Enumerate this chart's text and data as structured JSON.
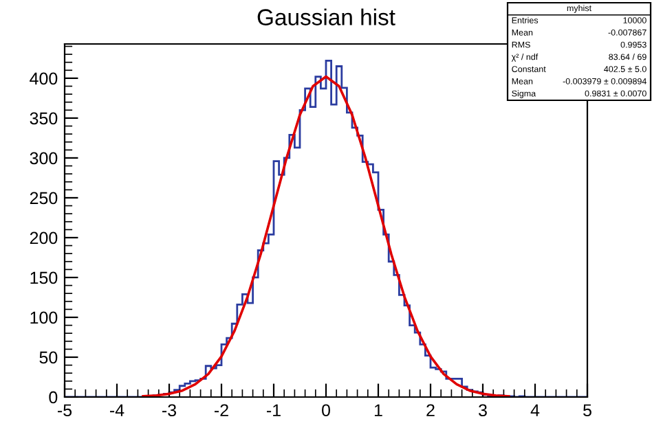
{
  "chart_data": {
    "type": "histogram",
    "title": "Gaussian hist",
    "bins": [
      -5.0,
      -4.9,
      -4.8,
      -4.7,
      -4.6,
      -4.5,
      -4.4,
      -4.3,
      -4.2,
      -4.1,
      -4.0,
      -3.9,
      -3.8,
      -3.7,
      -3.6,
      -3.5,
      -3.4,
      -3.3,
      -3.2,
      -3.1,
      -3.0,
      -2.9,
      -2.8,
      -2.7,
      -2.6,
      -2.5,
      -2.4,
      -2.3,
      -2.2,
      -2.1,
      -2.0,
      -1.9,
      -1.8,
      -1.7,
      -1.6,
      -1.5,
      -1.4,
      -1.3,
      -1.2,
      -1.1,
      -1.0,
      -0.9,
      -0.8,
      -0.7,
      -0.6,
      -0.5,
      -0.4,
      -0.3,
      -0.2,
      -0.1,
      0.0,
      0.1,
      0.2,
      0.3,
      0.4,
      0.5,
      0.6,
      0.7,
      0.8,
      0.9,
      1.0,
      1.1,
      1.2,
      1.3,
      1.4,
      1.5,
      1.6,
      1.7,
      1.8,
      1.9,
      2.0,
      2.1,
      2.2,
      2.3,
      2.4,
      2.5,
      2.6,
      2.7,
      2.8,
      2.9,
      3.0,
      3.1,
      3.2,
      3.3,
      3.4,
      3.5,
      3.6,
      3.7,
      3.8,
      3.9,
      4.0,
      4.1,
      4.2,
      4.3,
      4.4,
      4.5,
      4.6,
      4.7,
      4.8,
      4.9,
      5.0
    ],
    "series": [
      {
        "color": "#2b3ca0",
        "values": [
          0,
          0,
          0,
          0,
          0,
          0,
          0,
          0,
          0,
          0,
          0,
          0,
          0,
          0,
          0,
          1,
          1,
          2,
          3,
          4,
          6,
          9,
          14,
          17,
          20,
          21,
          23,
          39,
          36,
          40,
          66,
          74,
          92,
          116,
          129,
          118,
          150,
          184,
          193,
          204,
          296,
          279,
          300,
          329,
          313,
          360,
          387,
          364,
          402,
          387,
          422,
          367,
          415,
          388,
          357,
          338,
          328,
          295,
          292,
          282,
          235,
          204,
          170,
          153,
          128,
          115,
          90,
          81,
          66,
          52,
          37,
          35,
          32,
          23,
          23,
          23,
          13,
          9,
          7,
          6,
          3,
          2,
          1,
          2,
          1,
          1,
          0,
          1,
          0,
          0,
          0,
          0,
          0,
          0,
          0,
          0,
          0,
          0,
          0,
          0
        ]
      },
      {
        "type": "line",
        "color": "#e00000",
        "x": [
          -3.5,
          -3.25,
          -3.0,
          -2.75,
          -2.5,
          -2.25,
          -2.0,
          -1.75,
          -1.5,
          -1.25,
          -1.0,
          -0.75,
          -0.5,
          -0.25,
          0.0,
          0.25,
          0.5,
          0.75,
          1.0,
          1.25,
          1.5,
          1.75,
          2.0,
          2.25,
          2.5,
          2.75,
          3.0,
          3.25,
          3.5
        ],
        "values": [
          1,
          2,
          4,
          8,
          16,
          29,
          51,
          83,
          126,
          179,
          240,
          301,
          354,
          390,
          402,
          390,
          354,
          301,
          240,
          179,
          126,
          83,
          51,
          29,
          16,
          8,
          4,
          2,
          1
        ]
      }
    ],
    "xlim": [
      -5,
      5
    ],
    "xticks": [
      -5,
      -4,
      -3,
      -2,
      -1,
      0,
      1,
      2,
      3,
      4,
      5
    ],
    "ylim": [
      0,
      443
    ],
    "yticks": [
      0,
      50,
      100,
      150,
      200,
      250,
      300,
      350,
      400
    ],
    "grid": false,
    "legend": false,
    "annotations": [
      "myhist",
      "Entries",
      "10000",
      "Mean",
      "-0.007867",
      "RMS",
      "0.9953",
      "χ² / ndf",
      "83.64 / 69",
      "Constant",
      "402.5 ± 5.0",
      "Mean",
      "-0.003979 ± 0.009894",
      "Sigma",
      "0.9831 ± 0.0070"
    ]
  }
}
